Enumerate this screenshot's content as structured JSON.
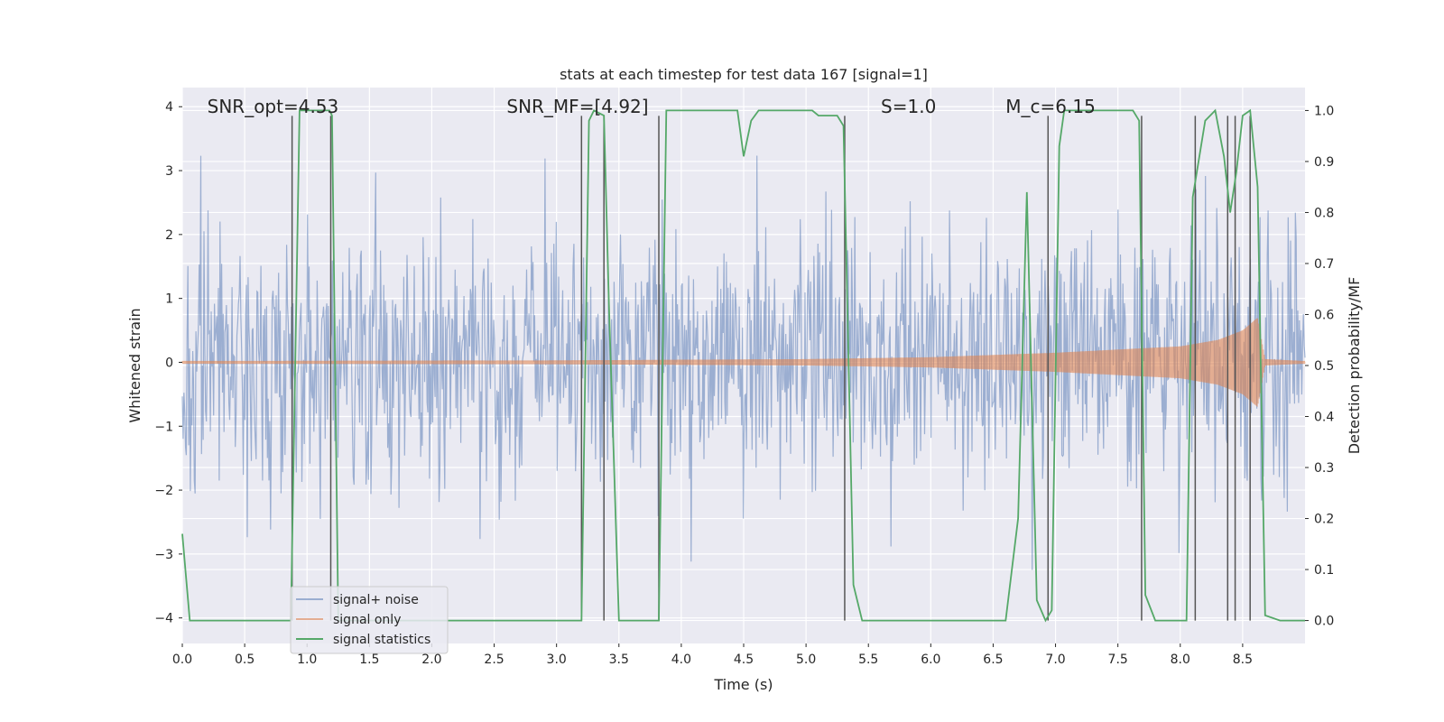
{
  "chart_data": {
    "type": "line",
    "title": "stats at each timestep for test data 167 [signal=1]",
    "xlabel": "Time (s)",
    "ylabel_left": "Whitened strain",
    "ylabel_right": "Detection probability/MF",
    "xlim": [
      0,
      9.0
    ],
    "ylim_left": [
      -4.4,
      4.3
    ],
    "ylim_right": [
      -0.045,
      1.045
    ],
    "x_ticks": [
      "0.0",
      "0.5",
      "1.0",
      "1.5",
      "2.0",
      "2.5",
      "3.0",
      "3.5",
      "4.0",
      "4.5",
      "5.0",
      "5.5",
      "6.0",
      "6.5",
      "7.0",
      "7.5",
      "8.0",
      "8.5"
    ],
    "x_tick_values": [
      0,
      0.5,
      1.0,
      1.5,
      2.0,
      2.5,
      3.0,
      3.5,
      4.0,
      4.5,
      5.0,
      5.5,
      6.0,
      6.5,
      7.0,
      7.5,
      8.0,
      8.5
    ],
    "y_left_ticks": [
      "4",
      "3",
      "2",
      "1",
      "0",
      "−1",
      "−2",
      "−3",
      "−4"
    ],
    "y_left_tick_values": [
      4,
      3,
      2,
      1,
      0,
      -1,
      -2,
      -3,
      -4
    ],
    "y_right_ticks": [
      "1.0",
      "0.9",
      "0.8",
      "0.7",
      "0.6",
      "0.5",
      "0.4",
      "0.3",
      "0.2",
      "0.1",
      "0.0"
    ],
    "y_right_tick_values": [
      1.0,
      0.9,
      0.8,
      0.7,
      0.6,
      0.5,
      0.4,
      0.3,
      0.2,
      0.1,
      0.0
    ],
    "grid": true,
    "legend_position": "lower-left",
    "annotations": [
      {
        "text": "SNR_opt=4.53",
        "x": 0.2
      },
      {
        "text": "SNR_MF=[4.92]",
        "x": 2.6
      },
      {
        "text": "S=1.0",
        "x": 5.6
      },
      {
        "text": "M_c=6.15",
        "x": 6.6
      }
    ],
    "series": [
      {
        "name": "signal+ noise",
        "color": "#4c72b0",
        "kind": "noise",
        "envelope_sigma": 1.0,
        "range": [
          -4.0,
          3.5
        ]
      },
      {
        "name": "signal only",
        "color": "#dd8452",
        "kind": "chirp",
        "chirp_envelope": [
          [
            0,
            0.02
          ],
          [
            3.0,
            0.03
          ],
          [
            5.0,
            0.05
          ],
          [
            6.0,
            0.08
          ],
          [
            7.0,
            0.15
          ],
          [
            7.5,
            0.2
          ],
          [
            8.0,
            0.25
          ],
          [
            8.3,
            0.35
          ],
          [
            8.5,
            0.5
          ],
          [
            8.62,
            0.7
          ],
          [
            8.68,
            0.05
          ],
          [
            9.0,
            0.02
          ]
        ]
      },
      {
        "name": "signal statistics",
        "color": "#55a868",
        "kind": "line",
        "points": [
          [
            0.0,
            0.17
          ],
          [
            0.06,
            0.0
          ],
          [
            0.85,
            0.0
          ],
          [
            0.87,
            0.0
          ],
          [
            0.94,
            1.0
          ],
          [
            1.0,
            1.0
          ],
          [
            1.18,
            1.0
          ],
          [
            1.2,
            0.99
          ],
          [
            1.25,
            0.0
          ],
          [
            3.18,
            0.0
          ],
          [
            3.2,
            0.0
          ],
          [
            3.26,
            0.98
          ],
          [
            3.3,
            1.0
          ],
          [
            3.38,
            0.99
          ],
          [
            3.42,
            0.62
          ],
          [
            3.5,
            0.0
          ],
          [
            3.8,
            0.0
          ],
          [
            3.82,
            0.0
          ],
          [
            3.88,
            1.0
          ],
          [
            4.45,
            1.0
          ],
          [
            4.5,
            0.91
          ],
          [
            4.56,
            0.98
          ],
          [
            4.62,
            1.0
          ],
          [
            5.05,
            1.0
          ],
          [
            5.1,
            0.99
          ],
          [
            5.25,
            0.99
          ],
          [
            5.3,
            0.97
          ],
          [
            5.38,
            0.07
          ],
          [
            5.45,
            0.0
          ],
          [
            6.6,
            0.0
          ],
          [
            6.7,
            0.2
          ],
          [
            6.77,
            0.84
          ],
          [
            6.85,
            0.04
          ],
          [
            6.92,
            0.0
          ],
          [
            6.97,
            0.02
          ],
          [
            7.03,
            0.93
          ],
          [
            7.07,
            1.0
          ],
          [
            7.62,
            1.0
          ],
          [
            7.67,
            0.98
          ],
          [
            7.72,
            0.05
          ],
          [
            7.8,
            0.0
          ],
          [
            8.05,
            0.0
          ],
          [
            8.1,
            0.83
          ],
          [
            8.2,
            0.98
          ],
          [
            8.28,
            1.0
          ],
          [
            8.35,
            0.91
          ],
          [
            8.4,
            0.8
          ],
          [
            8.45,
            0.88
          ],
          [
            8.5,
            0.99
          ],
          [
            8.56,
            1.0
          ],
          [
            8.62,
            0.85
          ],
          [
            8.68,
            0.01
          ],
          [
            8.8,
            0.0
          ],
          [
            9.0,
            0.0
          ]
        ]
      },
      {
        "name": "",
        "color": "#555555",
        "kind": "vlines",
        "x": [
          0.88,
          1.19,
          3.2,
          3.38,
          3.82,
          5.31,
          6.94,
          7.69,
          8.12,
          8.38,
          8.44,
          8.56
        ],
        "y_range_right": [
          0.0,
          1.0
        ]
      }
    ]
  }
}
